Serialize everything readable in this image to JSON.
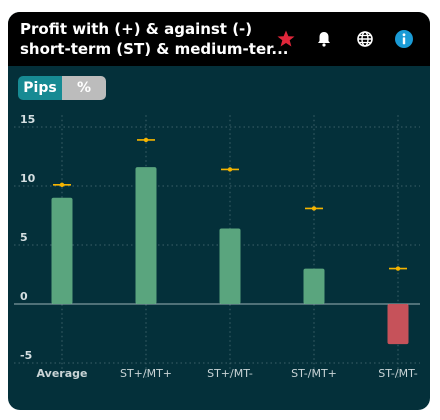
{
  "header": {
    "title_line1": "Profit with (+) & against (-)",
    "title_line2": "short-term (ST) & medium-ter...",
    "icons": [
      "star-icon",
      "bell-icon",
      "globe-icon",
      "info-icon"
    ],
    "star_color": "#e0263a"
  },
  "toggle": {
    "pips_label": "Pips",
    "percent_label": "%",
    "selected": "Pips"
  },
  "colors": {
    "positive": "#5aa57e",
    "negative": "#c6525a",
    "marker": "#f5b400",
    "background": "#04303a"
  },
  "chart_data": {
    "type": "bar",
    "categories": [
      "Average",
      "ST+/MT+",
      "ST+/MT-",
      "ST-/MT+",
      "ST-/MT-"
    ],
    "values": [
      9.0,
      11.6,
      6.4,
      3.0,
      -3.4
    ],
    "markers": [
      10.1,
      13.9,
      11.4,
      8.1,
      3.0
    ],
    "yticks": [
      15,
      10,
      5,
      0,
      -5
    ],
    "ylim": [
      -5.5,
      16
    ],
    "grid": true
  }
}
